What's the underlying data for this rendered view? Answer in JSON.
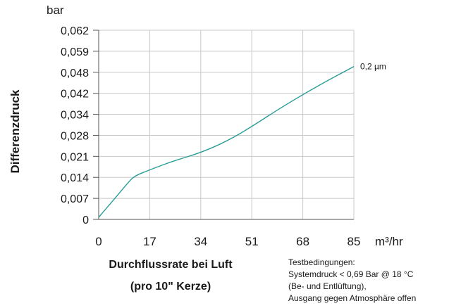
{
  "chart_data": {
    "type": "line",
    "y_unit": "bar",
    "x_unit": "m³/hr",
    "ylabel": "Differenzdruck",
    "xlabel_line1": "Durchflussrate bei Luft",
    "xlabel_line2": "(pro 10\" Kerze)",
    "y_ticks": [
      "0",
      "0,007",
      "0,014",
      "0,021",
      "0,028",
      "0,034",
      "0,042",
      "0,048",
      "0,059",
      "0,062"
    ],
    "x_ticks": [
      "0",
      "17",
      "34",
      "51",
      "68",
      "85"
    ],
    "xlim": [
      0,
      85
    ],
    "grid": true,
    "series": [
      {
        "name": "0,2 µm",
        "color": "#2a9d96",
        "x": [
          0,
          5,
          10,
          12,
          17,
          25,
          34,
          43,
          51,
          60,
          68,
          77,
          85
        ],
        "y": [
          0.0007,
          0.0065,
          0.0125,
          0.0145,
          0.0165,
          0.0195,
          0.0222,
          0.0262,
          0.0305,
          0.036,
          0.0415,
          0.046,
          0.051
        ]
      }
    ],
    "note": [
      "Testbedingungen:",
      "Systemdruck < 0,69 Bar @ 18 °C",
      "(Be- und Entlüftung),",
      "Ausgang gegen Atmosphäre offen"
    ]
  }
}
